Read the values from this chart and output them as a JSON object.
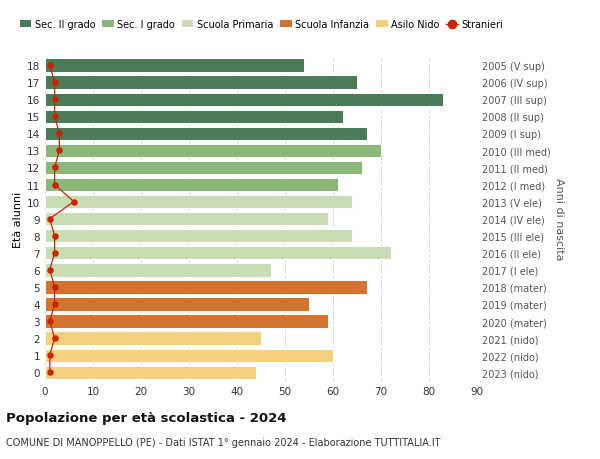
{
  "ages": [
    18,
    17,
    16,
    15,
    14,
    13,
    12,
    11,
    10,
    9,
    8,
    7,
    6,
    5,
    4,
    3,
    2,
    1,
    0
  ],
  "labels_right": [
    "2005 (V sup)",
    "2006 (IV sup)",
    "2007 (III sup)",
    "2008 (II sup)",
    "2009 (I sup)",
    "2010 (III med)",
    "2011 (II med)",
    "2012 (I med)",
    "2013 (V ele)",
    "2014 (IV ele)",
    "2015 (III ele)",
    "2016 (II ele)",
    "2017 (I ele)",
    "2018 (mater)",
    "2019 (mater)",
    "2020 (mater)",
    "2021 (nido)",
    "2022 (nido)",
    "2023 (nido)"
  ],
  "bar_values": [
    54,
    65,
    83,
    62,
    67,
    70,
    66,
    61,
    64,
    59,
    64,
    72,
    47,
    67,
    55,
    59,
    45,
    60,
    44
  ],
  "stranieri": [
    1,
    2,
    2,
    2,
    3,
    3,
    2,
    2,
    6,
    1,
    2,
    2,
    1,
    2,
    2,
    1,
    2,
    1,
    1
  ],
  "bar_colors": [
    "#4a7c59",
    "#4a7c59",
    "#4a7c59",
    "#4a7c59",
    "#4a7c59",
    "#8ab87a",
    "#8ab87a",
    "#8ab87a",
    "#c8ddb4",
    "#c8ddb4",
    "#c8ddb4",
    "#c8ddb4",
    "#c8ddb4",
    "#d4732e",
    "#d4732e",
    "#d4732e",
    "#f5d080",
    "#f5d080",
    "#f5d080"
  ],
  "legend_labels": [
    "Sec. II grado",
    "Sec. I grado",
    "Scuola Primaria",
    "Scuola Infanzia",
    "Asilo Nido",
    "Stranieri"
  ],
  "legend_colors": [
    "#4a7c59",
    "#8ab87a",
    "#c8ddb4",
    "#d4732e",
    "#f5d080",
    "#cc2200"
  ],
  "stranieri_color": "#cc2200",
  "xlabel_left": "Età alunni",
  "xlabel_right": "Anni di nascita",
  "xticks": [
    0,
    10,
    20,
    30,
    40,
    50,
    60,
    70,
    80,
    90
  ],
  "title": "Popolazione per età scolastica - 2024",
  "subtitle": "COMUNE DI MANOPPELLO (PE) - Dati ISTAT 1° gennaio 2024 - Elaborazione TUTTITALIA.IT",
  "bg_color": "#ffffff",
  "grid_color": "#d8d8d8"
}
